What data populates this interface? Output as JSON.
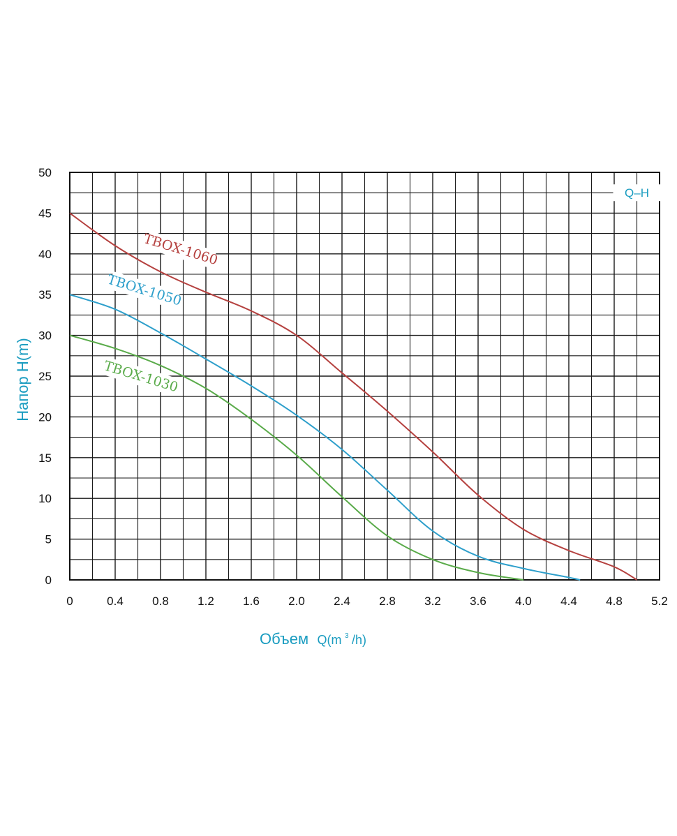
{
  "chart_data": {
    "type": "line",
    "title": "",
    "xlabel": {
      "word": "Объем",
      "formula": "Q(m",
      "sup": "3",
      "tail": "/h)"
    },
    "ylabel": "Напор H(m)",
    "xlim": [
      0,
      5.2
    ],
    "ylim": [
      0,
      50
    ],
    "x_ticks": [
      "0",
      "0.4",
      "0.8",
      "1.2",
      "1.6",
      "2.0",
      "2.4",
      "2.8",
      "3.2",
      "3.6",
      "4.0",
      "4.4",
      "4.8",
      "5.2"
    ],
    "y_ticks": [
      "0",
      "5",
      "10",
      "15",
      "20",
      "25",
      "30",
      "35",
      "40",
      "45",
      "50"
    ],
    "grid": true,
    "legend": {
      "text": "Q–H",
      "placement": "top-right"
    },
    "series": [
      {
        "name": "TBOX-1060",
        "color": "#b5413f",
        "points": [
          [
            0,
            45
          ],
          [
            0.4,
            41
          ],
          [
            0.8,
            37.8
          ],
          [
            1.2,
            35.3
          ],
          [
            1.6,
            33
          ],
          [
            2.0,
            30
          ],
          [
            2.4,
            25.4
          ],
          [
            2.8,
            20.7
          ],
          [
            3.2,
            15.7
          ],
          [
            3.6,
            10.4
          ],
          [
            4.0,
            6.2
          ],
          [
            4.4,
            3.6
          ],
          [
            4.8,
            1.6
          ],
          [
            5.0,
            0
          ]
        ]
      },
      {
        "name": "TBOX-1050",
        "color": "#2e9fcb",
        "points": [
          [
            0,
            35
          ],
          [
            0.4,
            33.2
          ],
          [
            0.8,
            30.3
          ],
          [
            1.2,
            27.1
          ],
          [
            1.6,
            23.8
          ],
          [
            2.0,
            20.2
          ],
          [
            2.4,
            16
          ],
          [
            2.8,
            11
          ],
          [
            3.2,
            6
          ],
          [
            3.6,
            2.9
          ],
          [
            4.0,
            1.4
          ],
          [
            4.4,
            0.3
          ],
          [
            4.5,
            0
          ]
        ]
      },
      {
        "name": "TBOX-1030",
        "color": "#5aab4a",
        "points": [
          [
            0,
            30
          ],
          [
            0.4,
            28.4
          ],
          [
            0.8,
            26.3
          ],
          [
            1.2,
            23.5
          ],
          [
            1.6,
            19.7
          ],
          [
            2.0,
            15.3
          ],
          [
            2.4,
            10.2
          ],
          [
            2.8,
            5.4
          ],
          [
            3.2,
            2.5
          ],
          [
            3.6,
            0.9
          ],
          [
            4.0,
            0
          ]
        ]
      }
    ]
  }
}
